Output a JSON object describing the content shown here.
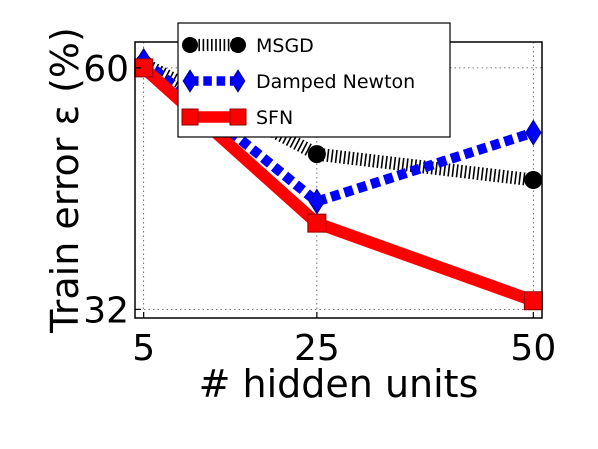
{
  "chart_data": {
    "type": "line",
    "xlabel": "# hidden units",
    "ylabel": "Train error ε (%)",
    "x_ticks": [
      "5",
      "25",
      "50"
    ],
    "y_ticks": [
      "32",
      "60"
    ],
    "xlim": [
      4,
      51
    ],
    "ylim": [
      31,
      63
    ],
    "grid": true,
    "legend_position": "top-center",
    "x": [
      5,
      25,
      50
    ],
    "series": [
      {
        "name": "MSGD",
        "values": [
          60.5,
          50.0,
          47.0
        ],
        "color": "#000000",
        "marker": "circle",
        "line": "hatched"
      },
      {
        "name": "Damped Newton",
        "values": [
          60.8,
          44.5,
          52.5
        ],
        "color": "#0000ff",
        "marker": "diamond",
        "line": "dashed"
      },
      {
        "name": "SFN",
        "values": [
          60.0,
          42.0,
          33.0
        ],
        "color": "#ff0000",
        "marker": "square",
        "line": "solid"
      }
    ]
  }
}
